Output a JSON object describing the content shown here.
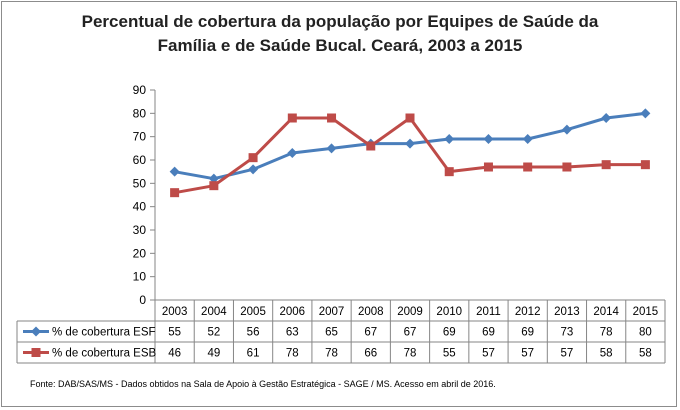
{
  "chart_data": {
    "type": "line",
    "title_line1": "Percentual de cobertura da população por Equipes de Saúde da",
    "title_line2": "Família e de Saúde Bucal. Ceará, 2003 a 2015",
    "categories": [
      "2003",
      "2004",
      "2005",
      "2006",
      "2007",
      "2008",
      "2009",
      "2010",
      "2011",
      "2012",
      "2013",
      "2014",
      "2015"
    ],
    "y_ticks": [
      "0",
      "10",
      "20",
      "30",
      "40",
      "50",
      "60",
      "70",
      "80",
      "90"
    ],
    "ylim": [
      0,
      90
    ],
    "grid": false,
    "legend_position": "data-table",
    "series": [
      {
        "name": "% de cobertura ESF",
        "color": "#4a7ebb",
        "marker": "diamond",
        "values": [
          55,
          52,
          56,
          63,
          65,
          67,
          67,
          69,
          69,
          69,
          73,
          78,
          80
        ]
      },
      {
        "name": "% de cobertura ESB",
        "color": "#be4b48",
        "marker": "square",
        "values": [
          46,
          49,
          61,
          78,
          78,
          66,
          78,
          55,
          57,
          57,
          57,
          58,
          58
        ]
      }
    ]
  },
  "source": "Fonte:  DAB/SAS/MS - Dados obtidos na Sala de Apoio à Gestão Estratégica - SAGE / MS. Acesso em abril de 2016."
}
